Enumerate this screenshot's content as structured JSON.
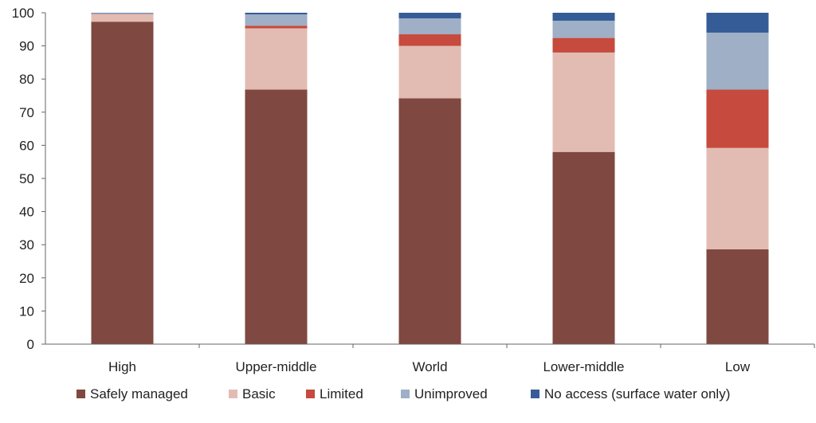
{
  "chart_data": {
    "type": "bar",
    "stacked": true,
    "categories": [
      "High",
      "Upper-middle",
      "World",
      "Lower-middle",
      "Low"
    ],
    "series": [
      {
        "name": "Safely managed",
        "color": "#7f4840",
        "values": [
          97.3,
          76.8,
          74.2,
          58.0,
          28.6
        ]
      },
      {
        "name": "Basic",
        "color": "#e2bcb2",
        "values": [
          2.2,
          18.5,
          15.8,
          30.0,
          30.6
        ]
      },
      {
        "name": "Limited",
        "color": "#c64a3e",
        "values": [
          0.1,
          0.8,
          3.5,
          4.4,
          17.6
        ]
      },
      {
        "name": "Unimproved",
        "color": "#9eafc6",
        "values": [
          0.3,
          3.4,
          4.8,
          5.2,
          17.2
        ]
      },
      {
        "name": "No access (surface water only)",
        "color": "#355c97",
        "values": [
          0.1,
          0.5,
          1.7,
          2.4,
          6.0
        ]
      }
    ],
    "ylim": [
      0,
      100
    ],
    "yticks": [
      0,
      10,
      20,
      30,
      40,
      50,
      60,
      70,
      80,
      90,
      100
    ],
    "grid": false,
    "legend_position": "bottom",
    "title": "",
    "xlabel": "",
    "ylabel": ""
  }
}
